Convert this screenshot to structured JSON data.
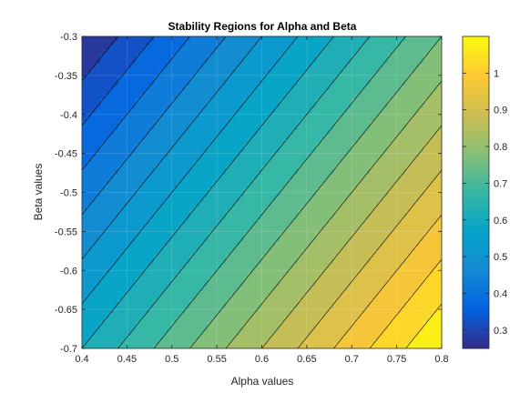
{
  "chart_data": {
    "type": "heatmap",
    "subtype": "filled-contour",
    "title": "Stability Regions for Alpha and Beta",
    "xlabel": "Alpha values",
    "ylabel": "Beta values",
    "xlim": [
      0.4,
      0.8
    ],
    "ylim": [
      -0.7,
      -0.3
    ],
    "x_ticks": [
      0.4,
      0.45,
      0.5,
      0.55,
      0.6,
      0.65,
      0.7,
      0.75,
      0.8
    ],
    "x_tick_labels": [
      "0.4",
      "0.45",
      "0.5",
      "0.55",
      "0.6",
      "0.65",
      "0.7",
      "0.75",
      "0.8"
    ],
    "y_ticks": [
      -0.3,
      -0.35,
      -0.4,
      -0.45,
      -0.5,
      -0.55,
      -0.6,
      -0.65,
      -0.7
    ],
    "y_tick_labels": [
      "-0.3",
      "-0.35",
      "-0.4",
      "-0.45",
      "-0.5",
      "-0.55",
      "-0.6",
      "-0.65",
      "-0.7"
    ],
    "z_range": [
      0.25,
      1.1
    ],
    "corner_values": {
      "alpha_0.4_beta_-0.3": 0.25,
      "alpha_0.8_beta_-0.3": 0.75,
      "alpha_0.4_beta_-0.7": 0.6,
      "alpha_0.8_beta_-0.7": 1.1
    },
    "contour_levels": [
      0.3,
      0.35,
      0.4,
      0.45,
      0.5,
      0.55,
      0.6,
      0.65,
      0.7,
      0.75,
      0.8,
      0.85,
      0.9,
      0.95,
      1.0,
      1.05
    ],
    "colormap": "parula",
    "colorbar": {
      "placement": "right",
      "ticks": [
        0.3,
        0.4,
        0.5,
        0.6,
        0.7,
        0.8,
        0.9,
        1
      ],
      "tick_labels": [
        "0.3",
        "0.4",
        "0.5",
        "0.6",
        "0.7",
        "0.8",
        "0.9",
        "1"
      ]
    },
    "grid": true
  }
}
